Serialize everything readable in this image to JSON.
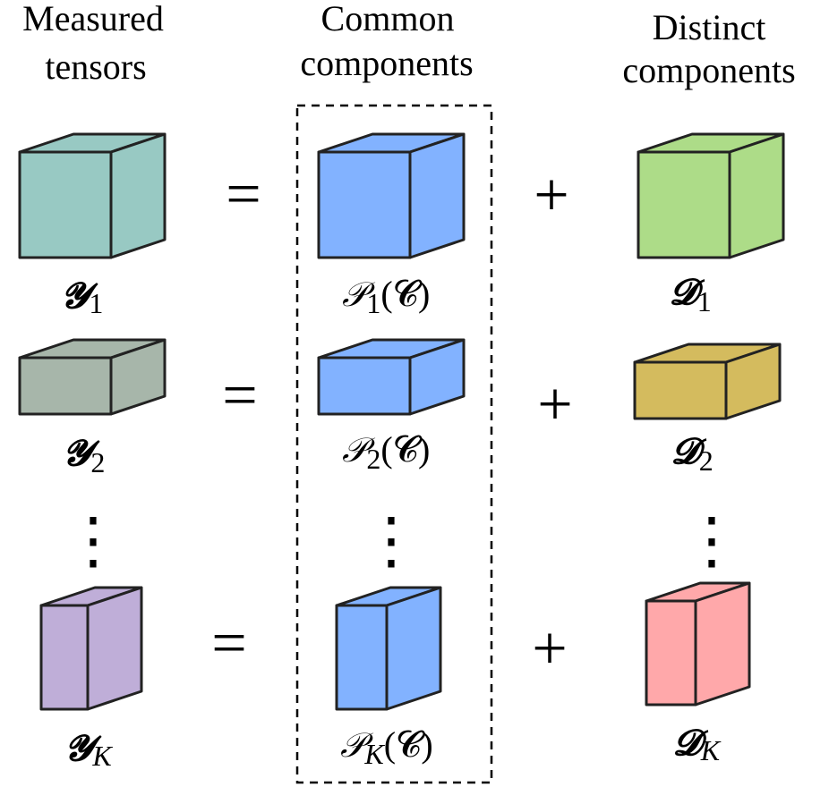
{
  "headers": {
    "measured": [
      "Measured",
      "tensors"
    ],
    "common": [
      "Common",
      "components"
    ],
    "distinct": [
      "Distinct",
      "components"
    ]
  },
  "operators": {
    "equals": "=",
    "plus": "+",
    "vdots": "⋮"
  },
  "rows": [
    {
      "measured": {
        "symbol": "𝓨",
        "subscript": "1",
        "color": "#98c9c3"
      },
      "common": {
        "symbol": "𝒫",
        "subscript": "1",
        "arg": "(𝓒)",
        "color": "#82b2ff"
      },
      "distinct": {
        "symbol": "𝓓",
        "subscript": "1",
        "color": "#addc88"
      }
    },
    {
      "measured": {
        "symbol": "𝓨",
        "subscript": "2",
        "color": "#a7b6aa"
      },
      "common": {
        "symbol": "𝒫",
        "subscript": "2",
        "arg": "(𝓒)",
        "color": "#82b2ff"
      },
      "distinct": {
        "symbol": "𝓓",
        "subscript": "2",
        "color": "#d4bb5e"
      }
    },
    {
      "measured": {
        "symbol": "𝓨",
        "subscript": "K",
        "color": "#bfaed8"
      },
      "common": {
        "symbol": "𝒫",
        "subscript": "K",
        "arg": "(𝓒)",
        "color": "#82b2ff"
      },
      "distinct": {
        "symbol": "𝓓",
        "subscript": "K",
        "color": "#ffa8aa"
      }
    }
  ]
}
